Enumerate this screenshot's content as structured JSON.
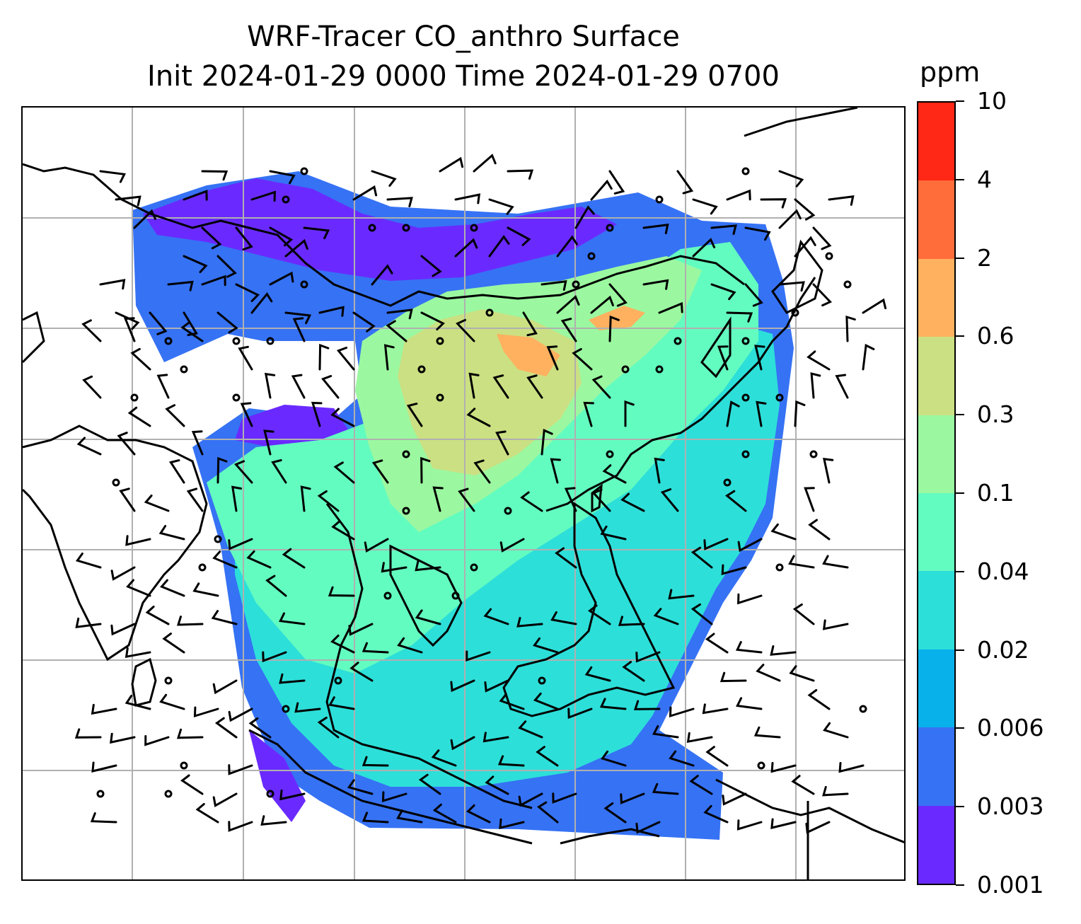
{
  "title": {
    "line1": "WRF-Tracer CO_anthro Surface",
    "line2": "Init 2024-01-29 0000 Time 2024-01-29 0700"
  },
  "colorbar": {
    "unit": "ppm",
    "ticks": [
      "0.001",
      "0.003",
      "0.006",
      "0.02",
      "0.04",
      "0.1",
      "0.3",
      "0.6",
      "2",
      "4",
      "10"
    ],
    "colors": [
      "#6a2aff",
      "#3672f4",
      "#08b1ea",
      "#2ddfd9",
      "#63fcc0",
      "#9bf8a0",
      "#cbe082",
      "#ffb15f",
      "#ff6d3a",
      "#ff2715"
    ]
  },
  "map": {
    "gridlines": true,
    "coastline_color": "#000000",
    "grid_color": "#b0b0b0",
    "wind_barbs": true,
    "calm_markers": true
  }
}
